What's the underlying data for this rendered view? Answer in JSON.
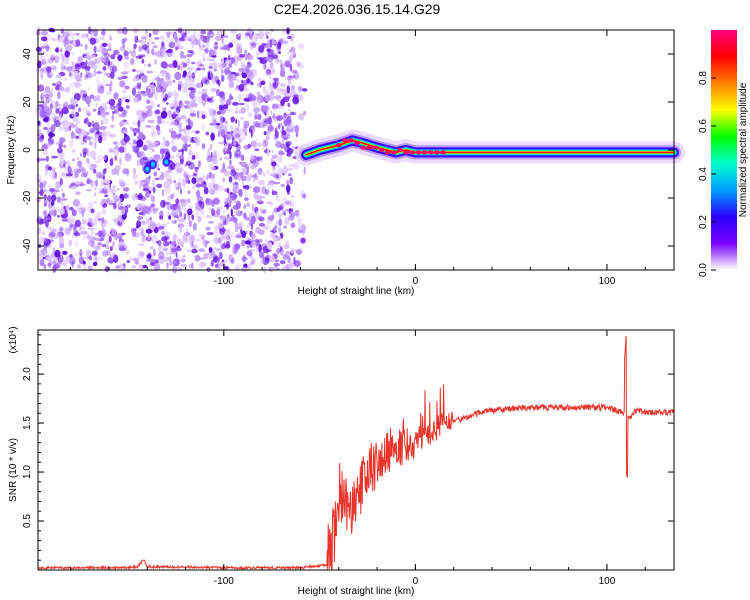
{
  "title": "C2E4.2026.036.15.14.G29",
  "chart_data": [
    {
      "type": "heatmap",
      "xlabel": "Height of straight line (km)",
      "ylabel": "Frequency (Hz)",
      "xlim": [
        -197,
        135
      ],
      "ylim": [
        -50,
        50
      ],
      "x_ticks": [
        -100,
        0,
        100
      ],
      "x_tick_labels": [
        "-100",
        "0",
        "100"
      ],
      "y_ticks": [
        -40,
        -20,
        0,
        20,
        40
      ],
      "y_tick_labels": [
        "-40",
        "-20",
        "0",
        "20",
        "40"
      ],
      "colorbar": {
        "label": "Normalized spectral amplitude",
        "range": [
          0,
          1
        ],
        "ticks": [
          0.0,
          0.2,
          0.4,
          0.6,
          0.8
        ],
        "tick_labels": [
          "0.0",
          "0.2",
          "0.4",
          "0.6",
          "0.8"
        ],
        "colormap": [
          "#ffffff",
          "#7a00ff",
          "#2a00ff",
          "#00a0ff",
          "#00ffcc",
          "#00ff00",
          "#ffff00",
          "#ff8000",
          "#ff0000",
          "#ff0080"
        ]
      },
      "noise_region_x": [
        -197,
        -57
      ],
      "signal_track": {
        "x": [
          -57,
          -50,
          -40,
          -33,
          -28,
          -20,
          -15,
          -10,
          -5,
          0,
          10,
          20,
          40,
          60,
          80,
          100,
          110,
          135
        ],
        "frequency_hz": [
          -2,
          0,
          2,
          4,
          3,
          1,
          0,
          -1,
          0,
          -1,
          -1,
          -1,
          -1,
          -1,
          -1,
          -1,
          -1,
          -1
        ]
      },
      "grid": false,
      "colors": {
        "noise": "#7a22ee",
        "track_core": "#ff0000",
        "track_edge": "#00e0ff",
        "track_outer": "#3a00ff"
      }
    },
    {
      "type": "line",
      "xlabel": "Height of straight line (km)",
      "ylabel": "SNR (10 * v/v)",
      "y_multiplier": "(x10⁴)",
      "xlim": [
        -197,
        135
      ],
      "ylim": [
        0,
        2.45
      ],
      "x_ticks": [
        -100,
        0,
        100
      ],
      "x_tick_labels": [
        "-100",
        "0",
        "100"
      ],
      "y_ticks": [
        0.5,
        1.0,
        1.5,
        2.0
      ],
      "y_tick_labels": [
        "0.5",
        "1.0",
        "1.5",
        "2.0"
      ],
      "series": [
        {
          "color": "#e8332a",
          "x": [
            -197,
            -150,
            -145,
            -142,
            -140,
            -100,
            -60,
            -45,
            -42,
            -40,
            -35,
            -30,
            -25,
            -20,
            -15,
            -10,
            -5,
            0,
            10,
            20,
            30,
            40,
            50,
            60,
            70,
            80,
            90,
            100,
            105,
            108,
            110,
            112,
            115,
            120,
            125,
            130,
            135
          ],
          "y": [
            0.02,
            0.02,
            0.03,
            0.1,
            0.03,
            0.02,
            0.02,
            0.05,
            0.3,
            0.7,
            0.5,
            0.7,
            0.9,
            1.0,
            1.1,
            1.2,
            1.2,
            1.25,
            1.4,
            1.5,
            1.58,
            1.62,
            1.64,
            1.65,
            1.65,
            1.65,
            1.65,
            1.65,
            1.62,
            1.6,
            1.6,
            1.55,
            1.62,
            1.6,
            1.6,
            1.6,
            1.6
          ]
        }
      ],
      "annotations": [
        {
          "x": 110,
          "y": 2.45,
          "text": ""
        },
        {
          "x": 110,
          "y": 0.92,
          "text": ""
        }
      ],
      "grid": false
    }
  ]
}
